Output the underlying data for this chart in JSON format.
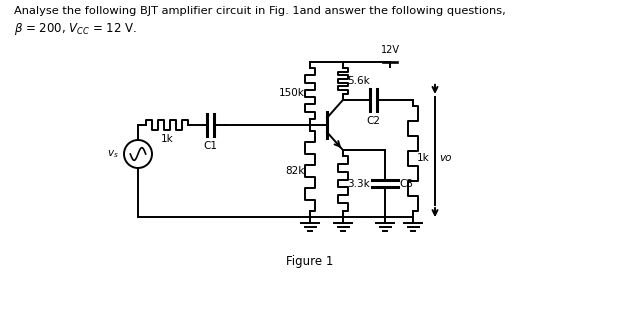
{
  "title_line1": "Analyse the following BJT amplifier circuit in Fig. 1and answer the following questions,",
  "title_line2": "\\u03b2 = 200, V",
  "vcc_label": "12V",
  "r1_label": "150k",
  "r2_label": "5.6k",
  "r3_label": "82k",
  "r4_label": "3.3k",
  "rin_label": "1k",
  "rout_label": "1k",
  "c1_label": "C1",
  "c2_label": "C2",
  "c3_label": "C3",
  "vs_label": "vs",
  "vo_label": "vo",
  "figure_label": "Figure 1",
  "bg_color": "#ffffff",
  "line_color": "#000000",
  "lw": 1.4
}
